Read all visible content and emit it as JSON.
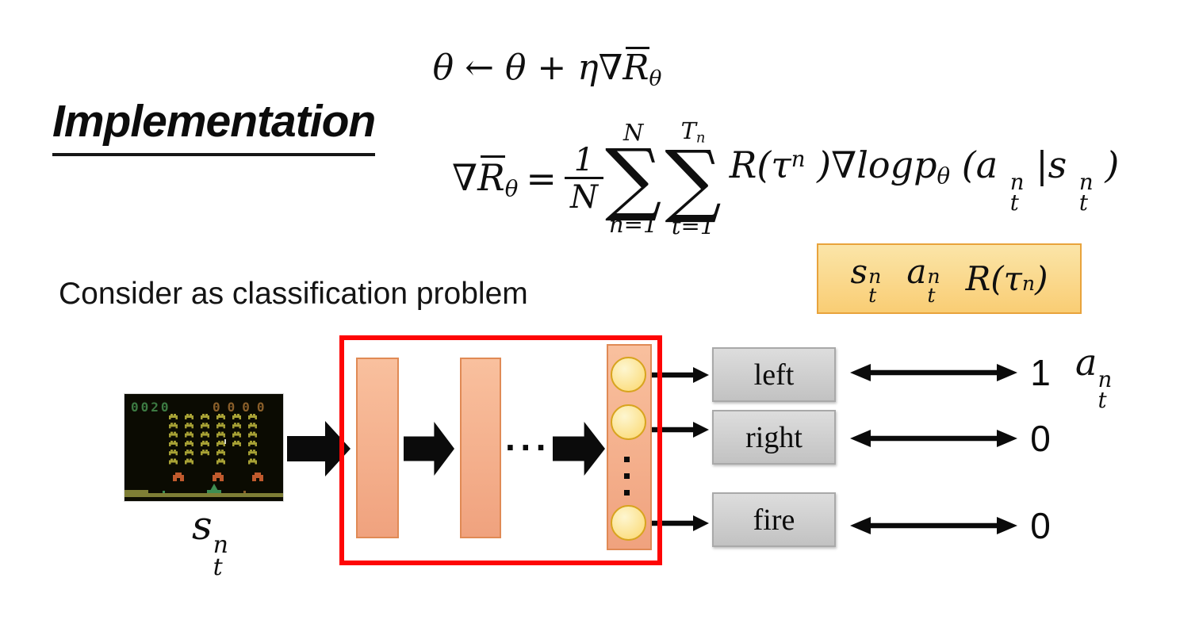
{
  "title": {
    "text": "Implementation"
  },
  "update_rule": {
    "pre": "θ ← θ + η∇",
    "r": "R",
    "sub": "θ"
  },
  "gradient_formula": {
    "lhs_pre": "∇",
    "lhs_r": "R",
    "lhs_sub": "θ",
    "equals": "=",
    "frac_num": "1",
    "frac_den": "N",
    "sum1": {
      "top": "N",
      "sigma": "∑",
      "bottom": "n=1"
    },
    "sum2": {
      "top": "T",
      "top_sub": "n",
      "sigma": "∑",
      "bottom": "t=1"
    },
    "tail": {
      "t1": "R(τ",
      "t1_sup": "n",
      "t2": ")∇logp",
      "t2_sub": "θ",
      "t3": "(a",
      "a_sup": "n",
      "a_sub": "t",
      "t4": "|s",
      "s_sup": "n",
      "s_sub": "t",
      "t5": ")"
    }
  },
  "sample_box": {
    "items": [
      {
        "main": "s",
        "sup": "n",
        "sub": "t"
      },
      {
        "main": "a",
        "sup": "n",
        "sub": "t"
      },
      {
        "main": "R(τ",
        "sup": "n",
        "close": ")"
      }
    ]
  },
  "subtitle": {
    "text": "Consider as classification problem"
  },
  "state_label": {
    "main": "s",
    "sup": "n",
    "sub": "t"
  },
  "action_label": {
    "main": "a",
    "sup": "n",
    "sub": "t"
  },
  "network": {
    "hidden_dots": "···"
  },
  "outputs": [
    {
      "label": "left",
      "value": "1"
    },
    {
      "label": "right",
      "value": "0"
    },
    {
      "label": "fire",
      "value": "0"
    }
  ],
  "game": {
    "score_left": "0020",
    "score_right": "0000",
    "alien_grid": [
      [
        1,
        1,
        1,
        1,
        1,
        1
      ],
      [
        1,
        1,
        1,
        1,
        1,
        1
      ],
      [
        1,
        1,
        1,
        1,
        1,
        1
      ],
      [
        1,
        1,
        1,
        1,
        1,
        1
      ],
      [
        1,
        1,
        1,
        1,
        0,
        1
      ],
      [
        1,
        1,
        0,
        1,
        0,
        1
      ]
    ],
    "colors": {
      "bg": "#0b0b02",
      "score_left": "#3c7a42",
      "score_right": "#8a5f2a",
      "alien": "#a8a235",
      "bunker": "#c05a2d",
      "cannon": "#3e8d52",
      "ground": "#7e7e35",
      "projectile": "#d9d9c8"
    }
  },
  "theme": {
    "red_box": "#fe0505",
    "layer_top": "#f9c09e",
    "layer_bottom": "#f0a27e",
    "layer_border": "#e08a55",
    "neuron_top": "#fdf6d0",
    "neuron_bottom": "#fcdf85",
    "neuron_border": "#d8a41f",
    "gold_top": "#fbe5a8",
    "gold_bottom": "#f9cd74",
    "gold_border": "#e8a33c",
    "gray_top": "#dddddd",
    "gray_bottom": "#c2c2c2",
    "gray_border": "#a9a9a9",
    "ink": "#111111"
  }
}
